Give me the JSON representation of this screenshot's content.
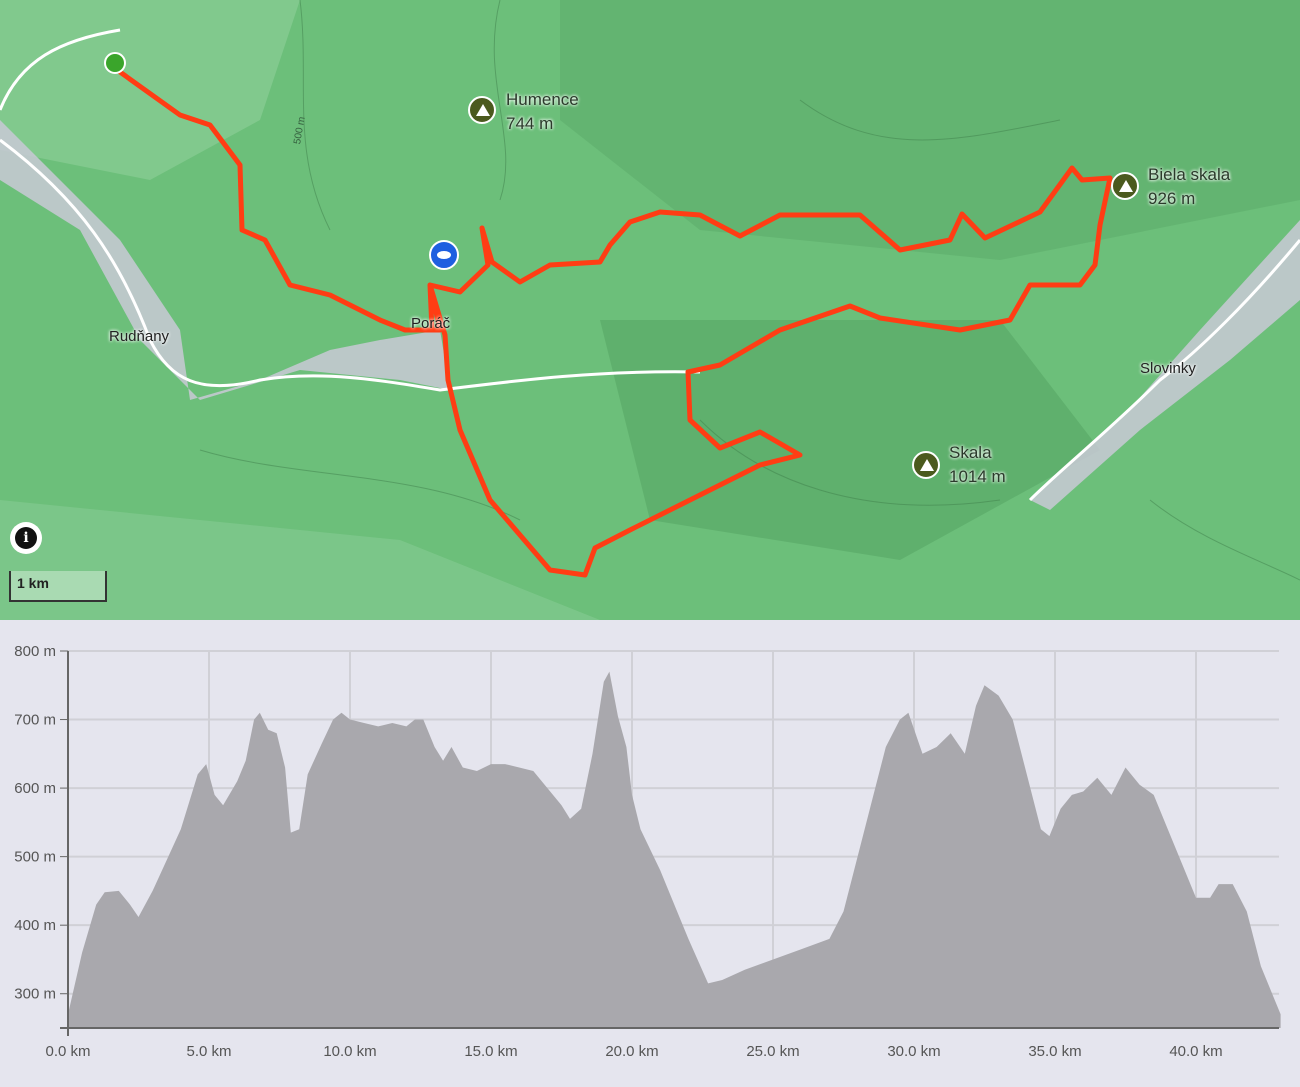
{
  "map": {
    "peaks": [
      {
        "name": "Humence",
        "elevation": "744 m"
      },
      {
        "name": "Biela skala",
        "elevation": "926 m"
      },
      {
        "name": "Skala",
        "elevation": "1014 m"
      }
    ],
    "towns": [
      "Rudňany",
      "Poráč",
      "Slovinky"
    ],
    "contour_label": "500 m",
    "scale_label": "1 km",
    "info_icon": "i",
    "route_color": "#ff3d14",
    "markers": {
      "start": "start-marker",
      "viewpoint": "eye-icon"
    }
  },
  "chart_data": {
    "type": "area",
    "title": "",
    "xlabel": "",
    "ylabel": "",
    "xlim": [
      0,
      43
    ],
    "ylim": [
      250,
      800
    ],
    "grid": true,
    "x_ticks": [
      "0.0 km",
      "5.0 km",
      "10.0 km",
      "15.0 km",
      "20.0 km",
      "25.0 km",
      "30.0 km",
      "35.0 km",
      "40.0 km"
    ],
    "y_ticks": [
      "800 m",
      "700 m",
      "600 m",
      "500 m",
      "400 m",
      "300 m"
    ],
    "fill_color": "#a9a8ad",
    "x": [
      0,
      0.5,
      1,
      1.3,
      1.8,
      2.2,
      2.5,
      3,
      3.5,
      4,
      4.3,
      4.6,
      4.9,
      5.2,
      5.5,
      6,
      6.3,
      6.6,
      6.8,
      7.1,
      7.4,
      7.7,
      7.9,
      8.2,
      8.5,
      9,
      9.4,
      9.7,
      10,
      10.5,
      11,
      11.5,
      12,
      12.3,
      12.6,
      13,
      13.3,
      13.6,
      14,
      14.5,
      15,
      15.5,
      16,
      16.5,
      17,
      17.5,
      17.8,
      18.2,
      18.6,
      19,
      19.2,
      19.5,
      19.8,
      20,
      20.3,
      21,
      22,
      22.7,
      23.2,
      24,
      25,
      26,
      27,
      27.5,
      28,
      28.5,
      29,
      29.5,
      29.8,
      30.3,
      30.8,
      31.3,
      31.8,
      32.2,
      32.5,
      33,
      33.5,
      34,
      34.5,
      34.8,
      35.2,
      35.6,
      36,
      36.5,
      37,
      37.5,
      38,
      38.5,
      39,
      39.5,
      40,
      40.5,
      40.8,
      41.3,
      41.8,
      42.3,
      43
    ],
    "values": [
      270,
      360,
      430,
      448,
      450,
      430,
      412,
      450,
      495,
      540,
      580,
      620,
      635,
      590,
      575,
      610,
      640,
      700,
      710,
      685,
      680,
      630,
      535,
      540,
      620,
      665,
      700,
      710,
      700,
      695,
      690,
      695,
      690,
      700,
      700,
      660,
      640,
      660,
      630,
      625,
      635,
      635,
      630,
      625,
      600,
      575,
      555,
      570,
      650,
      755,
      770,
      705,
      660,
      590,
      540,
      480,
      380,
      315,
      320,
      335,
      350,
      365,
      380,
      420,
      500,
      580,
      660,
      700,
      710,
      650,
      660,
      680,
      650,
      720,
      750,
      735,
      700,
      620,
      540,
      530,
      570,
      590,
      595,
      615,
      590,
      630,
      605,
      590,
      540,
      490,
      440,
      440,
      460,
      460,
      420,
      340,
      270
    ]
  }
}
